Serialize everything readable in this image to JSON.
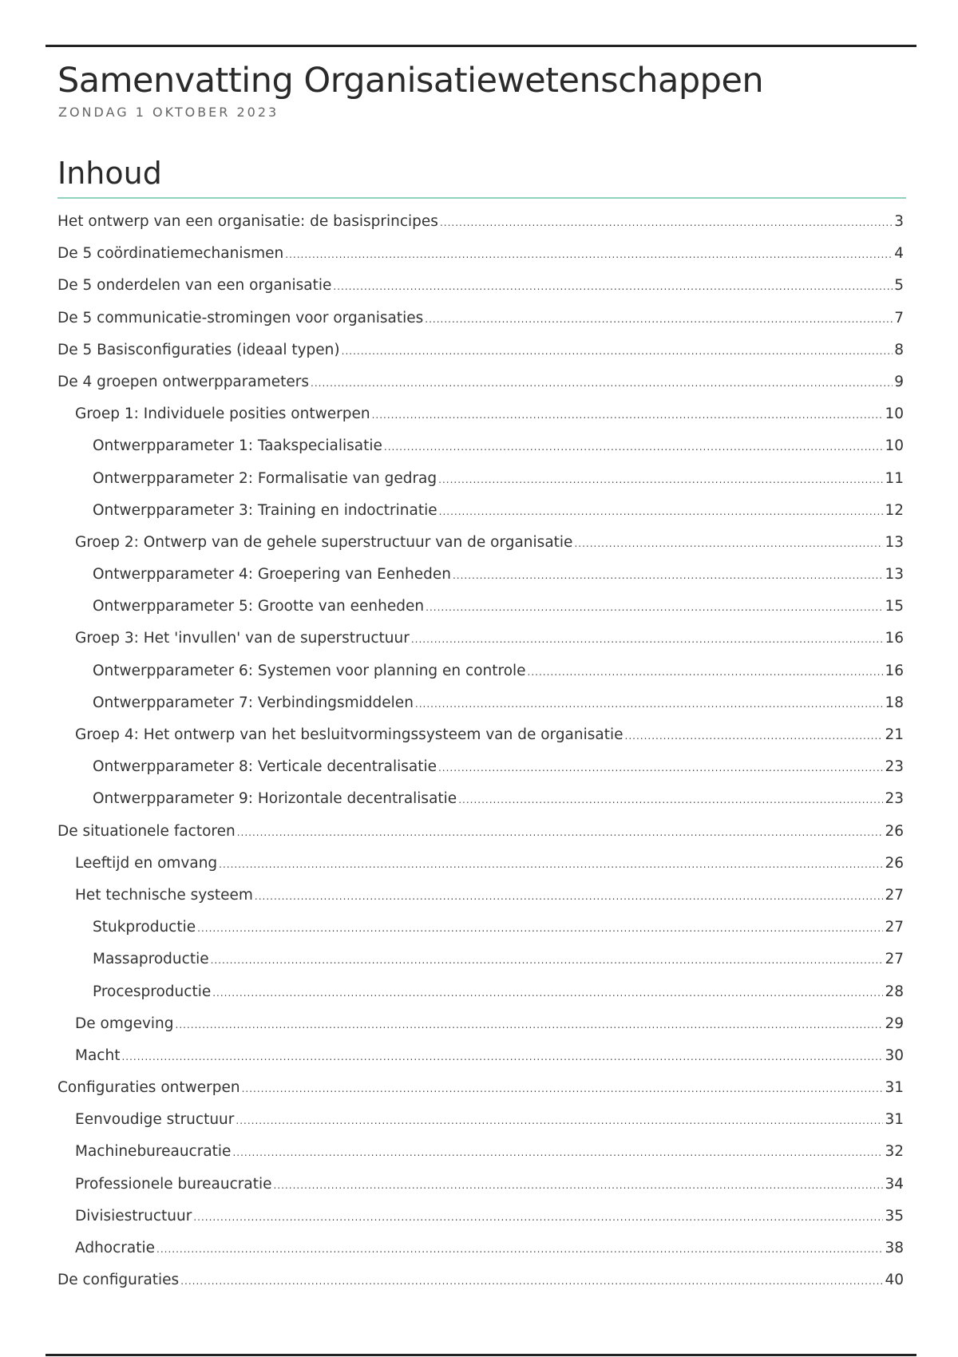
{
  "document": {
    "title": "Samenvatting Organisatiewetenschappen",
    "date": "ZONDAG 1 OKTOBER 2023",
    "toc_heading": "Inhoud",
    "accent_color": "#8fd3bd"
  },
  "toc": [
    {
      "label": "Het ontwerp van een organisatie: de basisprincipes",
      "page": "3",
      "level": 0
    },
    {
      "label": "De 5 coördinatiemechanismen",
      "page": "4",
      "level": 0
    },
    {
      "label": "De 5 onderdelen van een organisatie",
      "page": "5",
      "level": 0
    },
    {
      "label": "De 5 communicatie-stromingen voor organisaties",
      "page": "7",
      "level": 0
    },
    {
      "label": "De 5 Basisconfiguraties (ideaal typen)",
      "page": "8",
      "level": 0
    },
    {
      "label": "De 4 groepen ontwerpparameters",
      "page": "9",
      "level": 0
    },
    {
      "label": "Groep 1: Individuele posities ontwerpen",
      "page": "10",
      "level": 1
    },
    {
      "label": "Ontwerpparameter 1: Taakspecialisatie",
      "page": "10",
      "level": 2
    },
    {
      "label": "Ontwerpparameter 2: Formalisatie van gedrag",
      "page": "11",
      "level": 2
    },
    {
      "label": "Ontwerpparameter 3: Training en indoctrinatie",
      "page": "12",
      "level": 2
    },
    {
      "label": "Groep 2: Ontwerp van de gehele superstructuur van de organisatie",
      "page": "13",
      "level": 1
    },
    {
      "label": "Ontwerpparameter 4: Groepering van Eenheden",
      "page": "13",
      "level": 2
    },
    {
      "label": "Ontwerpparameter 5: Grootte van eenheden",
      "page": "15",
      "level": 2
    },
    {
      "label": "Groep 3: Het 'invullen' van de superstructuur",
      "page": "16",
      "level": 1
    },
    {
      "label": "Ontwerpparameter 6: Systemen voor planning en controle",
      "page": "16",
      "level": 2
    },
    {
      "label": "Ontwerpparameter 7: Verbindingsmiddelen",
      "page": "18",
      "level": 2
    },
    {
      "label": "Groep 4: Het ontwerp van het besluitvormingssysteem van de organisatie",
      "page": "21",
      "level": 1
    },
    {
      "label": "Ontwerpparameter 8: Verticale decentralisatie",
      "page": "23",
      "level": 2
    },
    {
      "label": "Ontwerpparameter 9: Horizontale decentralisatie",
      "page": "23",
      "level": 2
    },
    {
      "label": "De situationele factoren",
      "page": "26",
      "level": 0
    },
    {
      "label": "Leeftijd en omvang",
      "page": "26",
      "level": 1
    },
    {
      "label": "Het technische systeem",
      "page": "27",
      "level": 1
    },
    {
      "label": "Stukproductie",
      "page": "27",
      "level": 2
    },
    {
      "label": "Massaproductie",
      "page": "27",
      "level": 2
    },
    {
      "label": "Procesproductie",
      "page": "28",
      "level": 2
    },
    {
      "label": "De omgeving",
      "page": "29",
      "level": 1
    },
    {
      "label": "Macht",
      "page": "30",
      "level": 1
    },
    {
      "label": "Configuraties ontwerpen",
      "page": "31",
      "level": 0
    },
    {
      "label": "Eenvoudige structuur",
      "page": "31",
      "level": 1
    },
    {
      "label": "Machinebureaucratie",
      "page": "32",
      "level": 1
    },
    {
      "label": "Professionele bureaucratie",
      "page": "34",
      "level": 1
    },
    {
      "label": "Divisiestructuur",
      "page": "35",
      "level": 1
    },
    {
      "label": "Adhocratie",
      "page": "38",
      "level": 1
    },
    {
      "label": "De configuraties",
      "page": "40",
      "level": 0
    }
  ]
}
